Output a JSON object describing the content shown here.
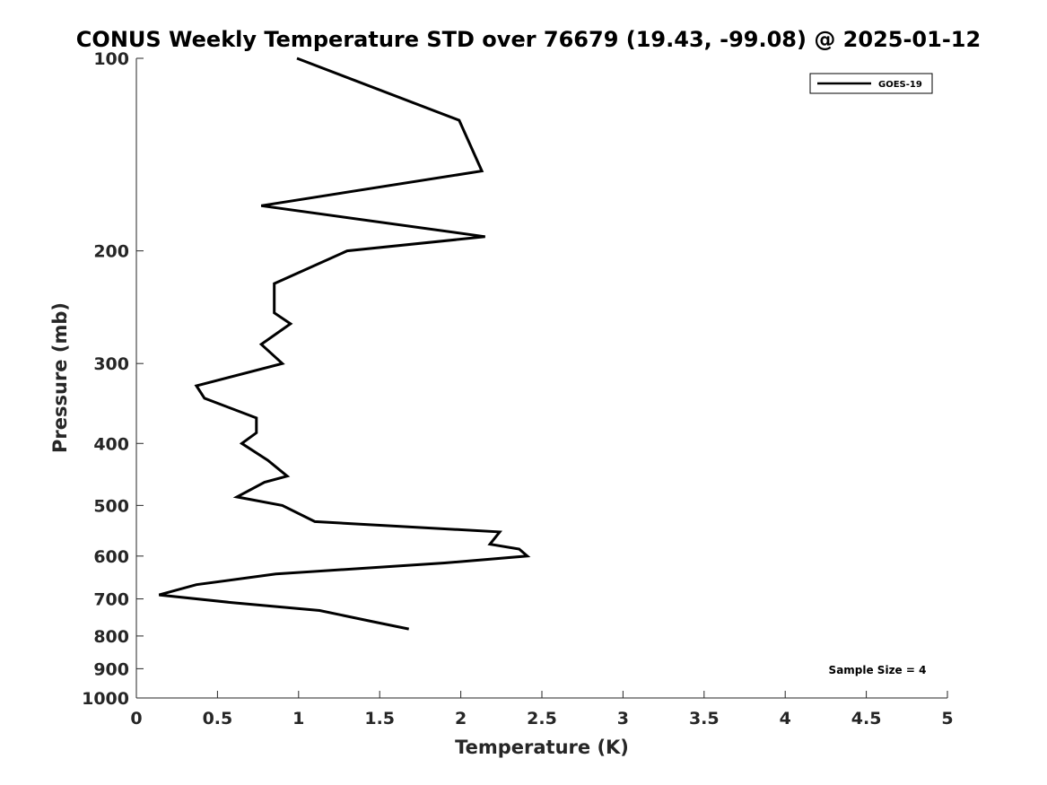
{
  "chart_data": {
    "type": "line",
    "title": "CONUS Weekly Temperature STD over 76679 (19.43, -99.08) @ 2025-01-12",
    "xlabel": "Temperature (K)",
    "ylabel": "Pressure (mb)",
    "xlim": [
      0,
      5
    ],
    "ylim": [
      100,
      1000
    ],
    "y_scale": "log",
    "y_reversed": true,
    "grid": false,
    "legend_position": "top-right",
    "x_ticks": [
      "0",
      "0.5",
      "1",
      "1.5",
      "2",
      "2.5",
      "3",
      "3.5",
      "4",
      "4.5",
      "5"
    ],
    "y_ticks": [
      "100",
      "200",
      "300",
      "400",
      "500",
      "600",
      "700",
      "800",
      "900",
      "1000"
    ],
    "series": [
      {
        "name": "GOES-19",
        "color": "#000000",
        "x": [
          0.99,
          1.99,
          2.13,
          0.77,
          2.15,
          1.3,
          0.85,
          0.85,
          0.95,
          0.77,
          0.9,
          0.37,
          0.42,
          0.74,
          0.74,
          0.65,
          0.81,
          0.93,
          0.79,
          0.62,
          0.9,
          1.1,
          2.24,
          2.18,
          2.36,
          2.41,
          1.9,
          0.86,
          0.37,
          0.14,
          0.6,
          1.13,
          1.46,
          1.68
        ],
        "y": [
          100,
          125,
          150,
          170,
          190,
          200,
          225,
          250,
          260,
          280,
          300,
          325,
          340,
          365,
          385,
          400,
          425,
          450,
          460,
          485,
          500,
          530,
          550,
          575,
          585,
          600,
          615,
          640,
          665,
          690,
          710,
          730,
          760,
          780
        ]
      }
    ],
    "annotations": [
      "Sample Size = 4"
    ]
  }
}
